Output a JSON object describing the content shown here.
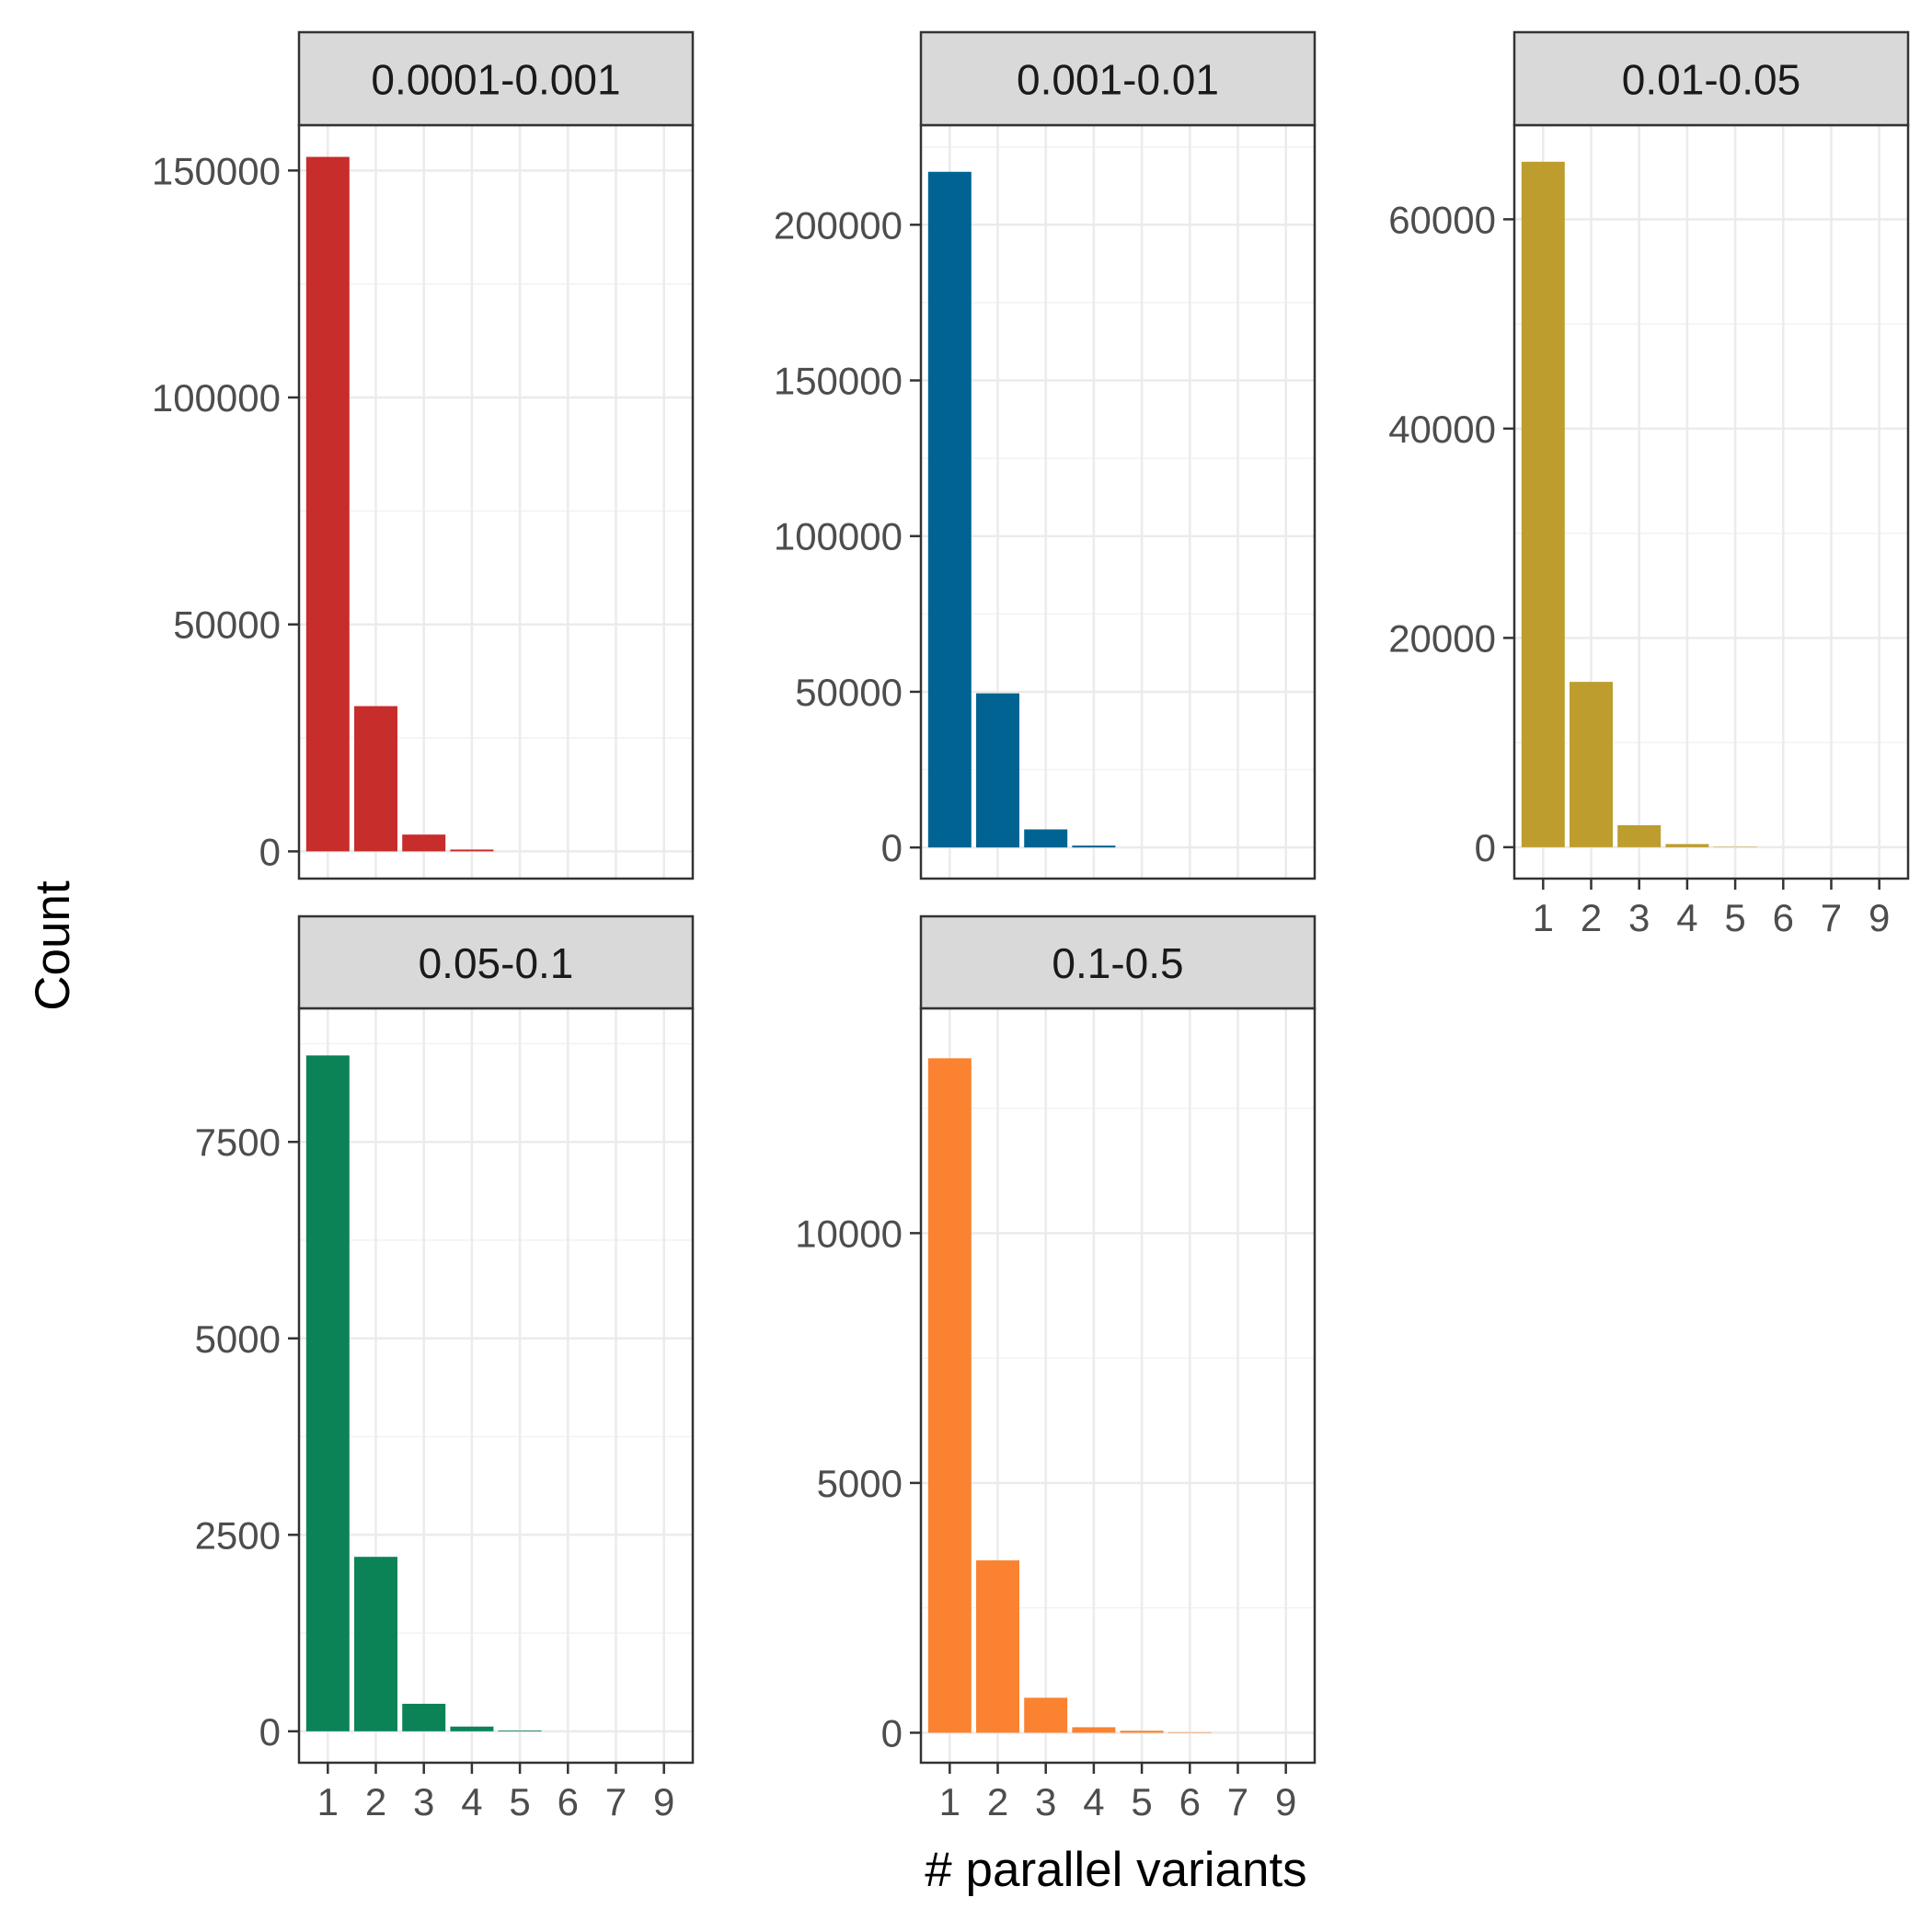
{
  "chart_data": {
    "type": "bar",
    "layout": "faceted",
    "xlabel": "# parallel variants",
    "ylabel": "Count",
    "x_categories": [
      "1",
      "2",
      "3",
      "4",
      "5",
      "6",
      "7",
      "9"
    ],
    "grid": true,
    "legend": "none",
    "facets": [
      {
        "label": "0.0001-0.001",
        "color": "#C62D2B",
        "ylim": [
          -6000,
          160000
        ],
        "yticks": [
          0,
          50000,
          100000,
          150000
        ],
        "values": [
          153000,
          32000,
          3700,
          400,
          60,
          15,
          5,
          2
        ]
      },
      {
        "label": "0.001-0.01",
        "color": "#006391",
        "ylim": [
          -10000,
          232000
        ],
        "yticks": [
          0,
          50000,
          100000,
          150000,
          200000
        ],
        "values": [
          217000,
          49500,
          5800,
          600,
          80,
          20,
          8,
          3
        ]
      },
      {
        "label": "0.01-0.05",
        "color": "#BE9D2F",
        "ylim": [
          -3000,
          69000
        ],
        "yticks": [
          0,
          20000,
          40000,
          60000
        ],
        "values": [
          65500,
          15800,
          2100,
          300,
          40,
          10,
          3,
          1
        ]
      },
      {
        "label": "0.05-0.1",
        "color": "#0C8257",
        "ylim": [
          -400,
          9200
        ],
        "yticks": [
          0,
          2500,
          5000,
          7500
        ],
        "values": [
          8600,
          2220,
          350,
          60,
          10,
          3,
          1,
          0
        ]
      },
      {
        "label": "0.1-0.5",
        "color": "#FA8230",
        "ylim": [
          -600,
          14500
        ],
        "yticks": [
          0,
          5000,
          10000
        ],
        "values": [
          13500,
          3450,
          700,
          110,
          40,
          10,
          4,
          2
        ]
      }
    ]
  }
}
